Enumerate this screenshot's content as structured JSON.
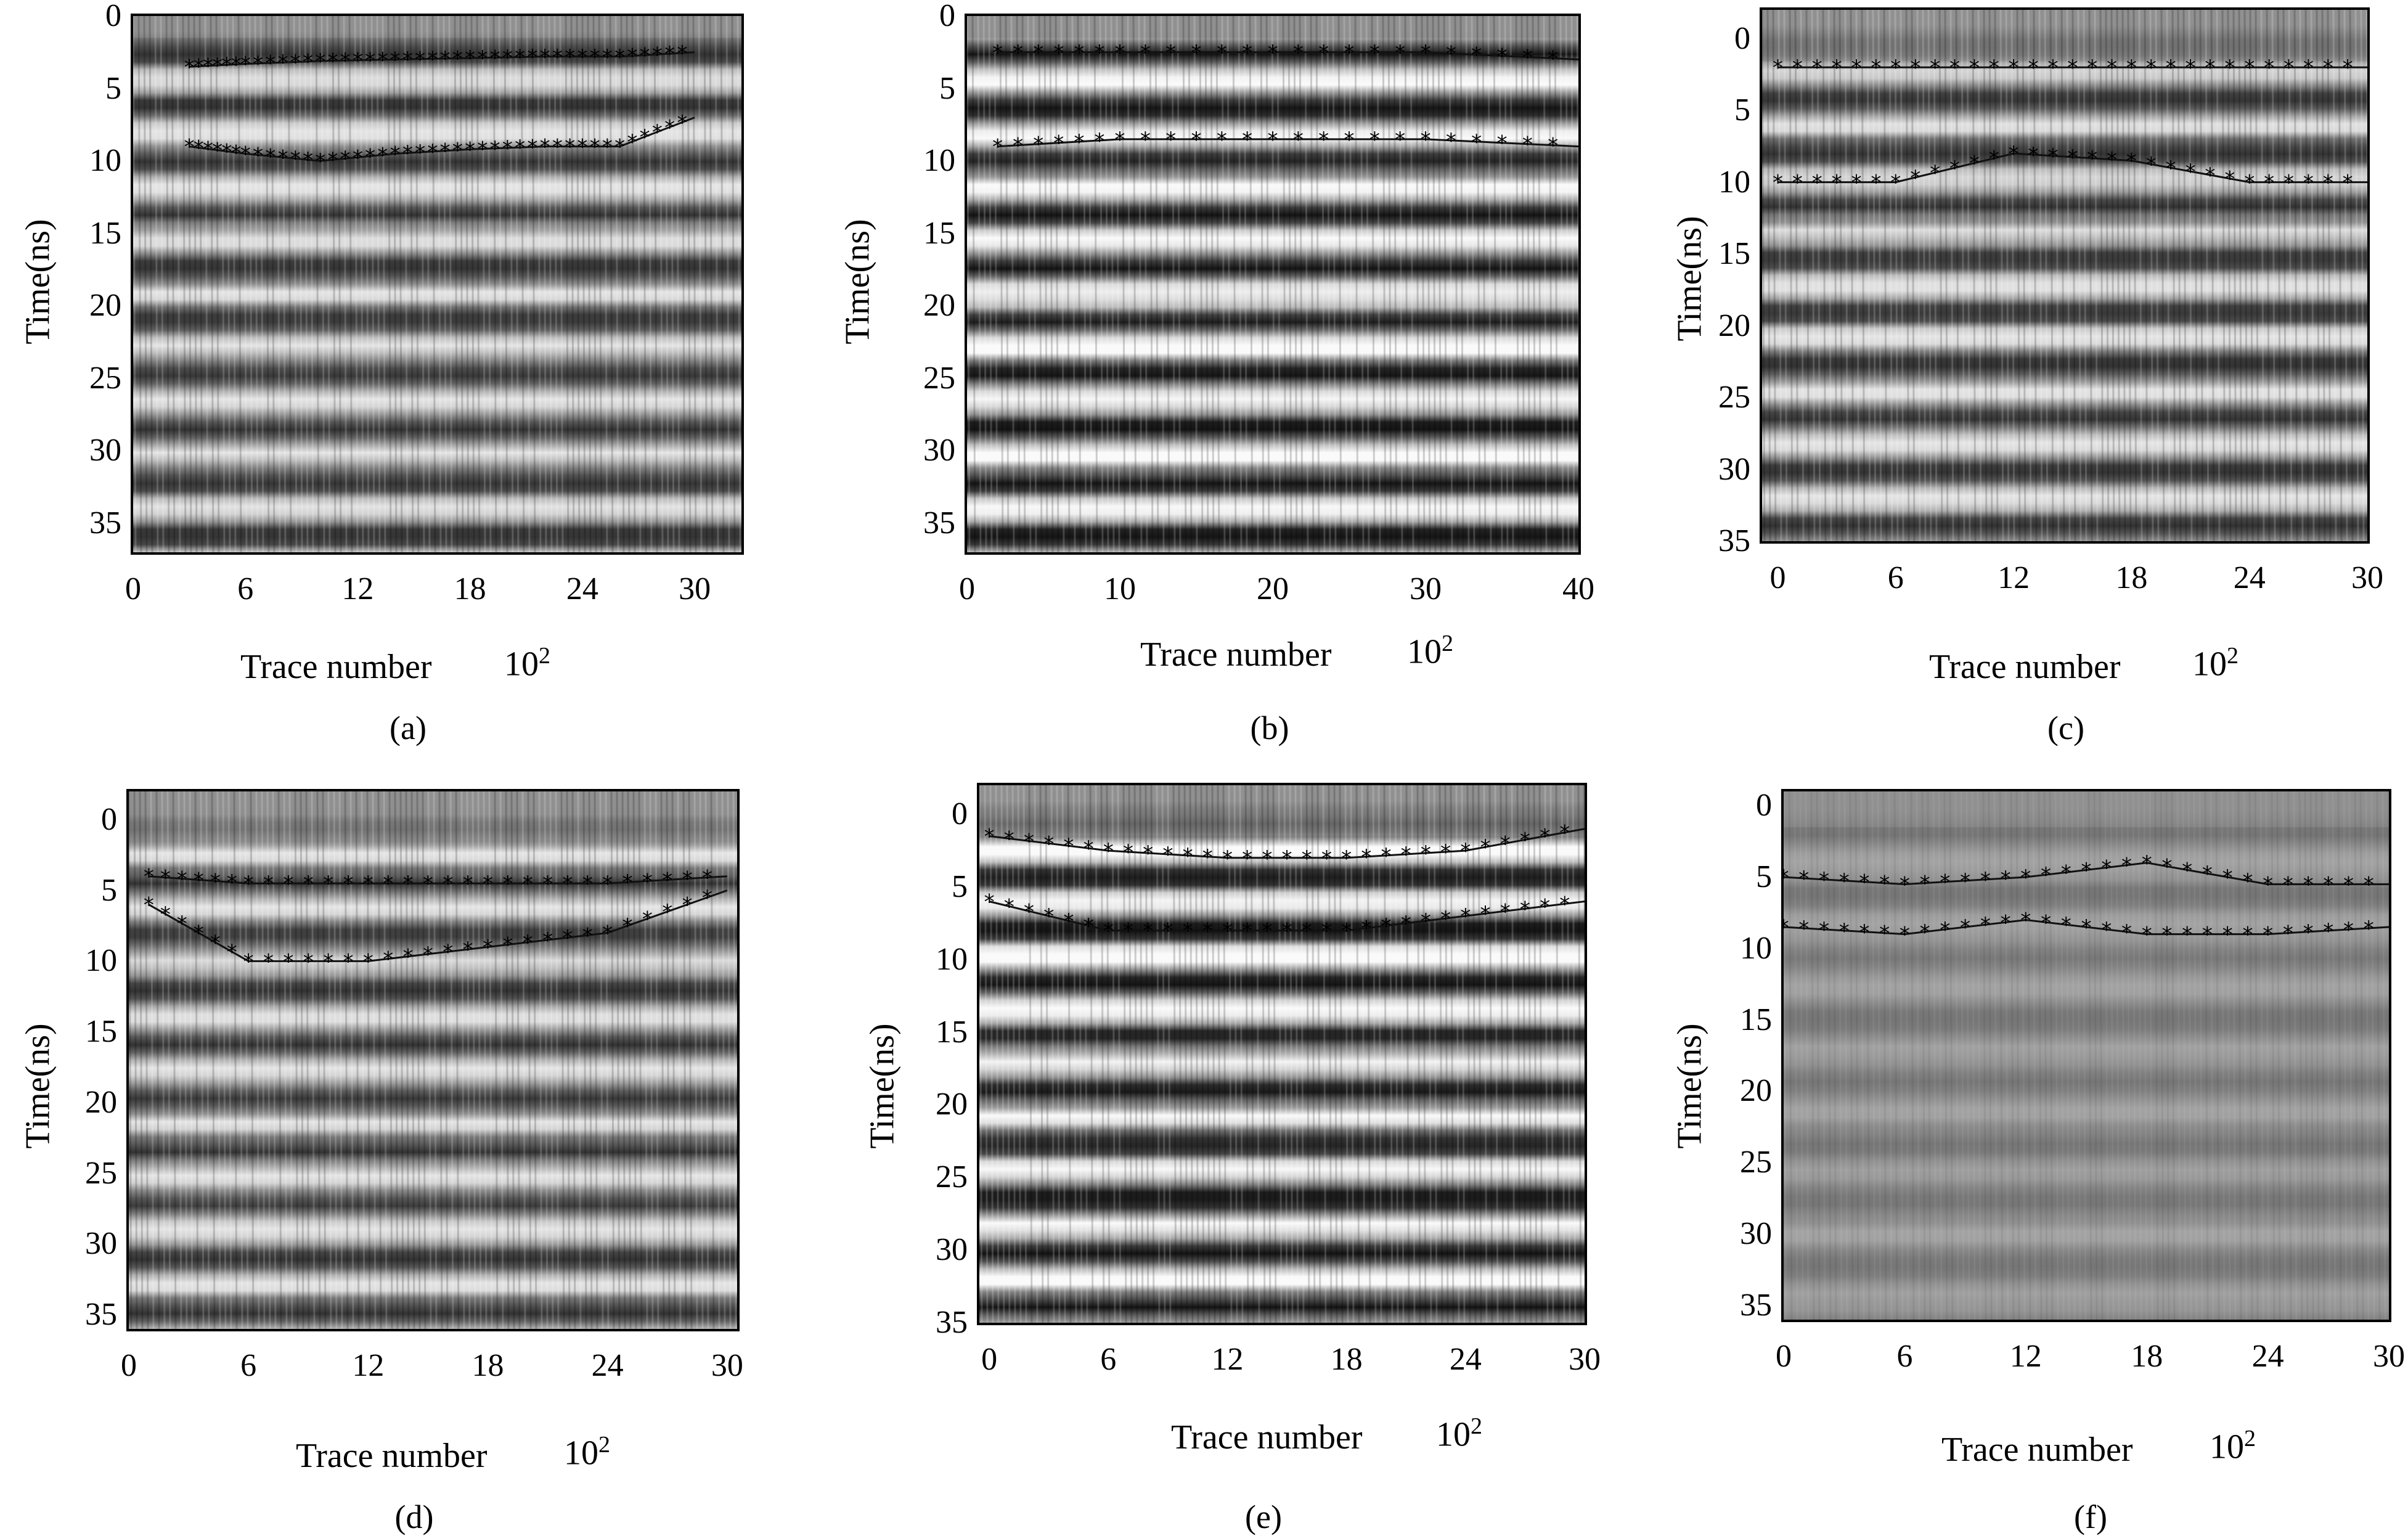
{
  "figure": {
    "panels": [
      {
        "id": "a",
        "caption": "(a)",
        "xlabel": "Trace number",
        "xscale_note": "10",
        "xscale_exp": "2",
        "ylabel": "Time(ns)",
        "xticks": [
          "0",
          "6",
          "12",
          "18",
          "24",
          "30"
        ],
        "yticks": [
          "0",
          "5",
          "10",
          "15",
          "20",
          "25",
          "30",
          "35"
        ],
        "xlim": [
          0,
          32.5
        ],
        "ylim": [
          0,
          37
        ]
      },
      {
        "id": "b",
        "caption": "(b)",
        "xlabel": "Trace number",
        "xscale_note": "10",
        "xscale_exp": "2",
        "ylabel": "Time(ns)",
        "xticks": [
          "0",
          "10",
          "20",
          "30",
          "40"
        ],
        "yticks": [
          "0",
          "5",
          "10",
          "15",
          "20",
          "25",
          "30",
          "35"
        ],
        "xlim": [
          0,
          40
        ],
        "ylim": [
          0,
          37
        ]
      },
      {
        "id": "c",
        "caption": "(c)",
        "xlabel": "Trace number",
        "xscale_note": "10",
        "xscale_exp": "2",
        "ylabel": "Time(ns)",
        "xticks": [
          "0",
          "6",
          "12",
          "18",
          "24",
          "30"
        ],
        "yticks": [
          "0",
          "5",
          "10",
          "15",
          "20",
          "25",
          "30",
          "35"
        ],
        "xlim": [
          -0.8,
          30
        ],
        "ylim": [
          -2,
          35
        ]
      },
      {
        "id": "d",
        "caption": "(d)",
        "xlabel": "Trace number",
        "xscale_note": "10",
        "xscale_exp": "2",
        "ylabel": "Time(ns)",
        "xticks": [
          "0",
          "6",
          "12",
          "18",
          "24",
          "30"
        ],
        "yticks": [
          "0",
          "5",
          "10",
          "15",
          "20",
          "25",
          "30",
          "35"
        ],
        "xlim": [
          0,
          30.5
        ],
        "ylim": [
          -2,
          36
        ]
      },
      {
        "id": "e",
        "caption": "(e)",
        "xlabel": "Trace number",
        "xscale_note": "10",
        "xscale_exp": "2",
        "ylabel": "Time(ns)",
        "xticks": [
          "0",
          "6",
          "12",
          "18",
          "24",
          "30"
        ],
        "yticks": [
          "0",
          "5",
          "10",
          "15",
          "20",
          "25",
          "30",
          "35"
        ],
        "xlim": [
          -0.5,
          30
        ],
        "ylim": [
          -2,
          35
        ]
      },
      {
        "id": "f",
        "caption": "(f)",
        "xlabel": "Trace number",
        "xscale_note": "10",
        "xscale_exp": "2",
        "ylabel": "Time(ns)",
        "xticks": [
          "0",
          "6",
          "12",
          "18",
          "24",
          "30"
        ],
        "yticks": [
          "0",
          "5",
          "10",
          "15",
          "20",
          "25",
          "30",
          "35"
        ],
        "xlim": [
          0,
          30
        ],
        "ylim": [
          -1,
          36
        ]
      }
    ]
  },
  "chart_data": [
    {
      "type": "heatmap",
      "id": "a",
      "xlabel": "Trace number",
      "ylabel": "Time(ns)",
      "x_unit_multiplier": "10^2",
      "xlim": [
        0,
        32.5
      ],
      "ylim": [
        0,
        37
      ],
      "y_inverted": true,
      "picked_layers": [
        {
          "x": [
            3,
            6,
            10,
            14,
            18,
            22,
            26,
            30
          ],
          "y": [
            3.5,
            3.3,
            3.1,
            3.0,
            2.9,
            2.8,
            2.8,
            2.5
          ]
        },
        {
          "x": [
            3,
            6,
            10,
            14,
            18,
            22,
            26,
            30
          ],
          "y": [
            9,
            9.5,
            10,
            9.5,
            9.2,
            9,
            9,
            7
          ]
        }
      ]
    },
    {
      "type": "heatmap",
      "id": "b",
      "xlabel": "Trace number",
      "ylabel": "Time(ns)",
      "x_unit_multiplier": "10^2",
      "xlim": [
        0,
        40
      ],
      "ylim": [
        0,
        37
      ],
      "y_inverted": true,
      "picked_layers": [
        {
          "x": [
            2,
            10,
            20,
            30,
            40
          ],
          "y": [
            2.5,
            2.5,
            2.5,
            2.5,
            3
          ]
        },
        {
          "x": [
            2,
            10,
            20,
            30,
            40
          ],
          "y": [
            9,
            8.5,
            8.5,
            8.5,
            9
          ]
        }
      ]
    },
    {
      "type": "heatmap",
      "id": "c",
      "xlabel": "Trace number",
      "ylabel": "Time(ns)",
      "x_unit_multiplier": "10^2",
      "xlim": [
        -0.8,
        30
      ],
      "ylim": [
        -2,
        35
      ],
      "y_inverted": true,
      "picked_layers": [
        {
          "x": [
            0,
            6,
            12,
            18,
            24,
            30
          ],
          "y": [
            2,
            2,
            2,
            2,
            2,
            2
          ]
        },
        {
          "x": [
            0,
            6,
            12,
            18,
            24,
            30
          ],
          "y": [
            10,
            10,
            8,
            8.5,
            10,
            10
          ]
        }
      ]
    },
    {
      "type": "heatmap",
      "id": "d",
      "xlabel": "Trace number",
      "ylabel": "Time(ns)",
      "x_unit_multiplier": "10^2",
      "xlim": [
        0,
        30.5
      ],
      "ylim": [
        -2,
        36
      ],
      "y_inverted": true,
      "picked_layers": [
        {
          "x": [
            1,
            6,
            12,
            18,
            24,
            30
          ],
          "y": [
            4,
            4.5,
            4.5,
            4.5,
            4.5,
            4
          ]
        },
        {
          "x": [
            1,
            6,
            12,
            18,
            24,
            30
          ],
          "y": [
            6,
            10,
            10,
            9,
            8,
            5
          ]
        }
      ]
    },
    {
      "type": "heatmap",
      "id": "e",
      "xlabel": "Trace number",
      "ylabel": "Time(ns)",
      "x_unit_multiplier": "10^2",
      "xlim": [
        -0.5,
        30
      ],
      "ylim": [
        -2,
        35
      ],
      "y_inverted": true,
      "picked_layers": [
        {
          "x": [
            0,
            6,
            12,
            18,
            24,
            30
          ],
          "y": [
            1.5,
            2.5,
            3,
            3,
            2.5,
            1
          ]
        },
        {
          "x": [
            0,
            6,
            12,
            18,
            24,
            30
          ],
          "y": [
            6,
            8,
            8,
            8,
            7,
            6
          ]
        }
      ]
    },
    {
      "type": "heatmap",
      "id": "f",
      "xlabel": "Trace number",
      "ylabel": "Time(ns)",
      "x_unit_multiplier": "10^2",
      "xlim": [
        0,
        30
      ],
      "ylim": [
        -1,
        36
      ],
      "y_inverted": true,
      "picked_layers": [
        {
          "x": [
            0,
            6,
            12,
            18,
            24,
            30
          ],
          "y": [
            5,
            5.5,
            5,
            4,
            5.5,
            5.5
          ]
        },
        {
          "x": [
            0,
            6,
            12,
            18,
            24,
            30
          ],
          "y": [
            8.5,
            9,
            8,
            9,
            9,
            8.5
          ]
        }
      ]
    }
  ]
}
